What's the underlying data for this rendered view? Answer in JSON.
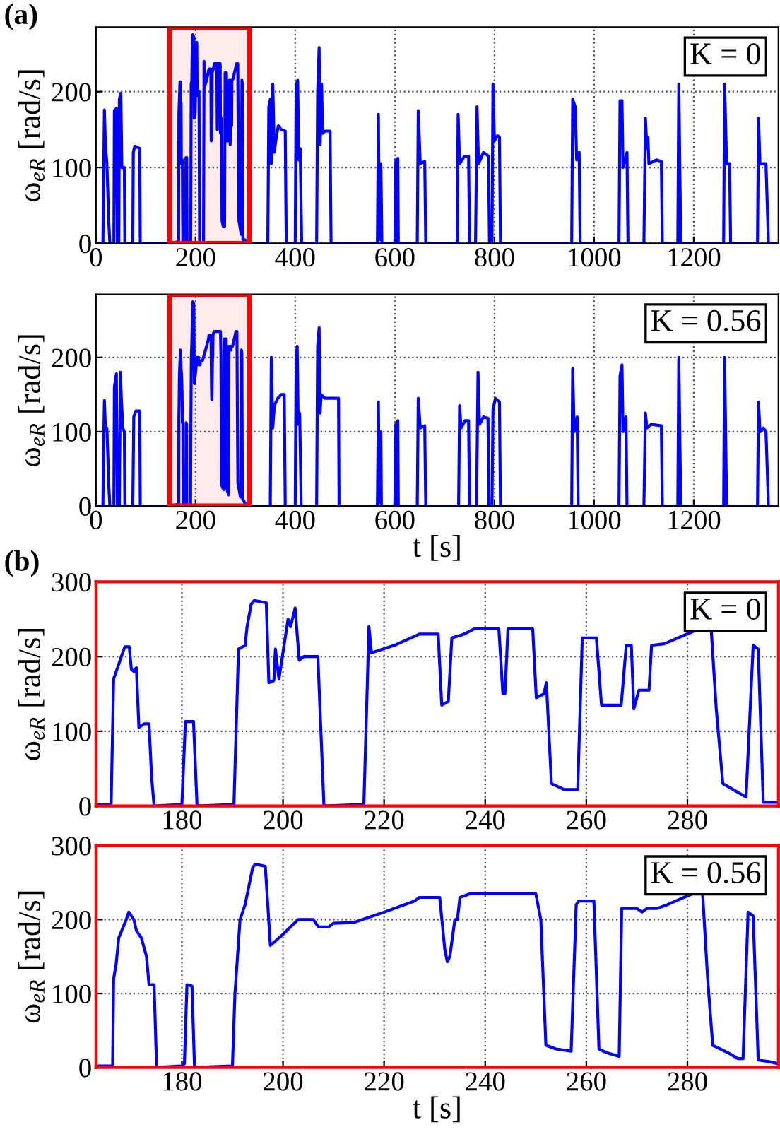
{
  "chart_data": [
    {
      "type": "line",
      "xlim": [
        0,
        1370
      ],
      "ylim": [
        0,
        285
      ],
      "xticks": [
        0,
        200,
        400,
        600,
        800,
        1000,
        1200
      ],
      "yticks": [
        0,
        100,
        200
      ],
      "ylabel": "ω$_{eR}$ [rad/s]",
      "grid": true,
      "legend": false,
      "annotations": [
        "(a)",
        "K = 0"
      ],
      "bands": [
        {
          "axis": "x",
          "from": 148,
          "to": 308,
          "color": "#ff0000"
        }
      ],
      "series": [
        {
          "color": "#0000ff",
          "x": [
            0,
            14,
            15,
            17,
            19,
            22,
            26,
            28,
            36,
            37,
            41,
            43,
            46,
            47,
            50,
            52,
            57,
            58,
            74,
            75,
            78,
            88,
            89,
            150,
            163,
            166,
            166.5,
            168.7,
            169.6,
            170,
            170.5,
            171,
            171.5,
            172.5,
            173.5,
            174,
            174.5,
            180,
            180.7,
            182.3,
            183,
            190,
            190.3,
            191.2,
            192.5,
            192.9,
            193.7,
            194.3,
            196.7,
            197.2,
            198.2,
            198.5,
            199.2,
            201,
            201.5,
            202.4,
            203.2,
            204.1,
            206.9,
            208.1,
            216,
            217,
            217.5,
            222,
            227,
            230.7,
            231.4,
            232.7,
            233.4,
            235.8,
            237.8,
            242.7,
            243.5,
            243.9,
            244.5,
            249.4,
            250.1,
            251.6,
            252.1,
            253.1,
            255.6,
            258.3,
            259.2,
            262,
            263,
            266.9,
            267.9,
            268.9,
            269.4,
            270.4,
            272.4,
            272.9,
            275.4,
            282.3,
            284.7,
            285.7,
            287,
            291.6,
            293,
            294,
            295,
            298,
            310,
            345,
            347,
            350,
            352,
            355,
            358,
            362,
            366,
            372,
            380,
            382,
            400,
            402,
            405,
            407,
            410,
            413,
            443,
            445,
            448,
            450,
            453,
            455,
            460,
            470,
            472,
            565,
            567,
            569,
            572,
            574,
            600,
            602,
            604,
            606,
            607,
            645,
            647,
            651,
            660,
            662,
            725,
            727,
            730,
            740,
            748,
            750,
            762,
            765,
            768,
            778,
            788,
            790,
            795,
            797,
            800,
            806,
            810,
            812,
            955,
            957,
            962,
            965,
            970,
            972,
            1050,
            1052,
            1056,
            1058,
            1066,
            1068,
            1100,
            1103,
            1106,
            1108,
            1110,
            1125,
            1135,
            1137,
            1168,
            1170,
            1174,
            1260,
            1262,
            1266,
            1272,
            1274,
            1328,
            1330,
            1333,
            1345,
            1350,
            1370
          ],
          "values": [
            0,
            0,
            65,
            176,
            130,
            105,
            25,
            0,
            0,
            175,
            178,
            0,
            0,
            190,
            198,
            100,
            100,
            0,
            0,
            120,
            128,
            125,
            0,
            0,
            2,
            2,
            170,
            213,
            213,
            183,
            180,
            185,
            105,
            110,
            110,
            40,
            0,
            2,
            113,
            113,
            0,
            2,
            2,
            210,
            215,
            240,
            270,
            275,
            272,
            165,
            168,
            210,
            170,
            250,
            240,
            265,
            195,
            200,
            200,
            0,
            2,
            240,
            205,
            215,
            230,
            230,
            135,
            140,
            225,
            230,
            237,
            237,
            150,
            150,
            237,
            237,
            145,
            150,
            165,
            30,
            22,
            22,
            225,
            225,
            135,
            135,
            215,
            215,
            130,
            155,
            155,
            215,
            217,
            237,
            237,
            130,
            30,
            12,
            215,
            210,
            5,
            5,
            0,
            0,
            180,
            190,
            105,
            210,
            120,
            140,
            155,
            150,
            148,
            0,
            0,
            210,
            215,
            110,
            125,
            0,
            0,
            200,
            258,
            130,
            210,
            145,
            148,
            148,
            0,
            0,
            170,
            5,
            105,
            0,
            0,
            110,
            0,
            112,
            0,
            0,
            175,
            105,
            108,
            0,
            0,
            170,
            105,
            115,
            115,
            0,
            0,
            180,
            105,
            120,
            115,
            0,
            0,
            210,
            135,
            142,
            140,
            0,
            0,
            190,
            180,
            110,
            120,
            0,
            0,
            188,
            188,
            100,
            120,
            0,
            0,
            165,
            125,
            140,
            105,
            110,
            108,
            0,
            0,
            210,
            0,
            0,
            210,
            105,
            105,
            0,
            0,
            165,
            105,
            105,
            0,
            0
          ]
        }
      ]
    },
    {
      "type": "line",
      "xlim": [
        0,
        1370
      ],
      "ylim": [
        0,
        285
      ],
      "xticks": [
        0,
        200,
        400,
        600,
        800,
        1000,
        1200
      ],
      "yticks": [
        0,
        100,
        200
      ],
      "xlabel": "t [s]",
      "ylabel": "ω$_{eR}$ [rad/s]",
      "grid": true,
      "legend": false,
      "annotations": [
        "K = 0.56"
      ],
      "bands": [
        {
          "axis": "x",
          "from": 148,
          "to": 308,
          "color": "#ff0000"
        }
      ],
      "series": [
        {
          "color": "#0000ff",
          "x": [
            0,
            14,
            15,
            17,
            19,
            22,
            26,
            28,
            36,
            37,
            41,
            43,
            47,
            49,
            51,
            54,
            57,
            58,
            74,
            76,
            80,
            88,
            89,
            150,
            163,
            166.3,
            166.5,
            167,
            167.5,
            169,
            169.5,
            170.5,
            171,
            172,
            173,
            173.5,
            174.5,
            175,
            180,
            180.5,
            181,
            182,
            182.5,
            190,
            190.5,
            191.5,
            192.5,
            194,
            194.5,
            196.5,
            197.5,
            200,
            203,
            206,
            207,
            209,
            210,
            214,
            220,
            226,
            227,
            231,
            232,
            232.5,
            233,
            234,
            234.5,
            235,
            237,
            250,
            251,
            252,
            254,
            257,
            258,
            258.5,
            261.5,
            262.5,
            264,
            266.5,
            267,
            270,
            271,
            272,
            274,
            276,
            281,
            283,
            284,
            285,
            288,
            290,
            291,
            292,
            293,
            294,
            296,
            298,
            300,
            310,
            350,
            352,
            355,
            358,
            365,
            372,
            378,
            380,
            400,
            402,
            404,
            406,
            409,
            412,
            443,
            445,
            448,
            450,
            452,
            460,
            487,
            488,
            565,
            567,
            569,
            572,
            573,
            600,
            602,
            604,
            606,
            607,
            645,
            647,
            651,
            660,
            662,
            728,
            730,
            733,
            741,
            748,
            750,
            764,
            767,
            770,
            778,
            787,
            789,
            795,
            797,
            802,
            810,
            812,
            955,
            957,
            960,
            966,
            968,
            1050,
            1052,
            1056,
            1058,
            1064,
            1066,
            1100,
            1103,
            1106,
            1115,
            1135,
            1137,
            1168,
            1170,
            1174,
            1260,
            1262,
            1266,
            1328,
            1330,
            1333,
            1340,
            1345,
            1350,
            1370
          ],
          "values": [
            0,
            0,
            65,
            142,
            105,
            105,
            25,
            0,
            0,
            160,
            178,
            0,
            0,
            180,
            145,
            105,
            100,
            0,
            0,
            120,
            128,
            128,
            0,
            0,
            2,
            2,
            120,
            140,
            175,
            200,
            210,
            200,
            185,
            175,
            150,
            112,
            112,
            0,
            2,
            5,
            112,
            110,
            0,
            2,
            100,
            200,
            220,
            270,
            275,
            272,
            165,
            180,
            200,
            200,
            190,
            190,
            195,
            196,
            210,
            225,
            230,
            230,
            160,
            143,
            150,
            200,
            200,
            230,
            235,
            235,
            200,
            30,
            25,
            22,
            220,
            225,
            225,
            25,
            20,
            15,
            215,
            215,
            210,
            215,
            215,
            220,
            235,
            235,
            120,
            30,
            20,
            12,
            12,
            210,
            205,
            10,
            8,
            5,
            3,
            0,
            0,
            200,
            105,
            135,
            145,
            150,
            150,
            0,
            0,
            200,
            215,
            110,
            125,
            0,
            0,
            215,
            240,
            125,
            150,
            145,
            145,
            0,
            0,
            140,
            5,
            100,
            0,
            0,
            110,
            0,
            115,
            0,
            0,
            145,
            105,
            108,
            0,
            0,
            135,
            105,
            115,
            115,
            0,
            0,
            180,
            110,
            120,
            118,
            0,
            0,
            130,
            145,
            140,
            0,
            0,
            185,
            100,
            120,
            0,
            0,
            175,
            190,
            100,
            120,
            0,
            0,
            125,
            105,
            110,
            108,
            0,
            0,
            200,
            0,
            0,
            200,
            0,
            0,
            140,
            100,
            105,
            100,
            0,
            0
          ]
        }
      ]
    },
    {
      "type": "line",
      "xlim": [
        163,
        298
      ],
      "ylim": [
        0,
        300
      ],
      "xticks": [
        180,
        200,
        220,
        240,
        260,
        280
      ],
      "yticks": [
        0,
        100,
        200,
        300
      ],
      "ylabel": "ω$_{eR}$ [rad/s]",
      "grid": true,
      "legend": false,
      "annotations": [
        "(b)",
        "K = 0"
      ],
      "series": [
        {
          "color": "#0000ff",
          "x": [
            163,
            166,
            166.5,
            168.7,
            169.6,
            170,
            170.5,
            171,
            171.5,
            172.5,
            173.5,
            174,
            174.5,
            180,
            180.7,
            182.3,
            183,
            190,
            190.3,
            191.2,
            192.5,
            192.9,
            193.7,
            194.3,
            196.7,
            197.2,
            198.2,
            198.5,
            199.2,
            201,
            201.5,
            202.4,
            203.2,
            204.1,
            206.9,
            208.1,
            216,
            217,
            217.5,
            222,
            227,
            230.7,
            231.4,
            232.7,
            233.4,
            235.8,
            237.8,
            242.7,
            243.5,
            243.9,
            244.5,
            249.4,
            250.1,
            251.6,
            252.1,
            253.1,
            255.6,
            258.3,
            259.2,
            262,
            263,
            266.9,
            267.9,
            268.9,
            269.4,
            270.4,
            272.4,
            272.9,
            275.4,
            282.3,
            284.7,
            285.7,
            287,
            291.6,
            293,
            294,
            295,
            298
          ],
          "values": [
            2,
            2,
            170,
            213,
            213,
            183,
            180,
            185,
            105,
            110,
            110,
            40,
            0,
            2,
            113,
            113,
            0,
            2,
            2,
            210,
            215,
            240,
            270,
            275,
            272,
            165,
            168,
            210,
            170,
            250,
            240,
            265,
            195,
            200,
            200,
            0,
            2,
            240,
            205,
            215,
            230,
            230,
            135,
            140,
            225,
            230,
            237,
            237,
            150,
            150,
            237,
            237,
            145,
            150,
            165,
            30,
            22,
            22,
            225,
            225,
            135,
            135,
            215,
            215,
            130,
            155,
            155,
            215,
            217,
            237,
            237,
            130,
            30,
            12,
            215,
            210,
            5,
            5
          ]
        }
      ]
    },
    {
      "type": "line",
      "xlim": [
        163,
        298
      ],
      "ylim": [
        0,
        300
      ],
      "xticks": [
        180,
        200,
        220,
        240,
        260,
        280
      ],
      "yticks": [
        0,
        100,
        200,
        300
      ],
      "xlabel": "t [s]",
      "ylabel": "ω$_{eR}$ [rad/s]",
      "grid": true,
      "legend": false,
      "annotations": [
        "K = 0.56"
      ],
      "series": [
        {
          "color": "#0000ff",
          "x": [
            163,
            166.3,
            166.5,
            167,
            167.5,
            169,
            169.5,
            170.5,
            171,
            172,
            173,
            173.5,
            174.5,
            175,
            180,
            180.5,
            181,
            182,
            182.5,
            190,
            190.5,
            191.5,
            192.5,
            194,
            194.5,
            196.5,
            197.5,
            200,
            203,
            206,
            207,
            209,
            210,
            214,
            220,
            226,
            227,
            231,
            232,
            232.5,
            233,
            234,
            234.5,
            235,
            237,
            250,
            251,
            252,
            254,
            257,
            258,
            258.5,
            261.5,
            262.5,
            264,
            266.5,
            267,
            270,
            271,
            272,
            274,
            276,
            281,
            283,
            284,
            285,
            288,
            290,
            291,
            292,
            293,
            294,
            296,
            298
          ],
          "values": [
            2,
            2,
            120,
            140,
            175,
            200,
            210,
            200,
            185,
            175,
            150,
            112,
            112,
            0,
            2,
            5,
            112,
            110,
            0,
            2,
            100,
            200,
            220,
            270,
            275,
            272,
            165,
            180,
            200,
            200,
            190,
            190,
            195,
            196,
            210,
            225,
            230,
            230,
            160,
            143,
            150,
            200,
            200,
            230,
            235,
            235,
            200,
            30,
            25,
            22,
            220,
            225,
            225,
            25,
            20,
            15,
            215,
            215,
            210,
            215,
            215,
            220,
            235,
            235,
            120,
            30,
            20,
            12,
            12,
            210,
            205,
            10,
            8,
            5
          ]
        }
      ]
    }
  ]
}
